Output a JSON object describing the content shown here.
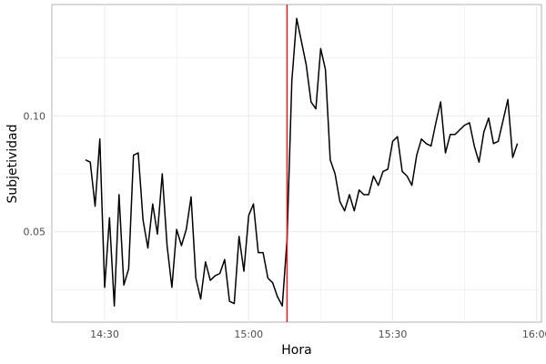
{
  "chart_data": {
    "type": "line",
    "title": "",
    "xlabel": "Hora",
    "ylabel": "Subjetividad",
    "x_ticks": [
      "14:30",
      "15:00",
      "15:30",
      "16:00"
    ],
    "y_ticks": [
      "0.05",
      "0.10"
    ],
    "xlim": [
      "14:19",
      "16:01"
    ],
    "ylim": [
      0.011,
      0.148
    ],
    "grid": true,
    "colors": {
      "line": "#000000",
      "vline": "#e31a1c",
      "grid": "#ebebeb"
    },
    "vline_x": "15:08",
    "series": [
      {
        "x": [
          "14:26",
          "14:27",
          "14:28",
          "14:29",
          "14:30",
          "14:31",
          "14:32",
          "14:33",
          "14:34",
          "14:35",
          "14:36",
          "14:37",
          "14:38",
          "14:39",
          "14:40",
          "14:41",
          "14:42",
          "14:43",
          "14:44",
          "14:45",
          "14:46",
          "14:47",
          "14:48",
          "14:49",
          "14:50",
          "14:51",
          "14:52",
          "14:53",
          "14:54",
          "14:55",
          "14:56",
          "14:57",
          "14:58",
          "14:59",
          "15:00",
          "15:01",
          "15:02",
          "15:03",
          "15:04",
          "15:05",
          "15:06",
          "15:07",
          "15:08",
          "15:09",
          "15:10",
          "15:11",
          "15:12",
          "15:13",
          "15:14",
          "15:15",
          "15:16",
          "15:17",
          "15:18",
          "15:19",
          "15:20",
          "15:21",
          "15:22",
          "15:23",
          "15:24",
          "15:25",
          "15:26",
          "15:27",
          "15:28",
          "15:29",
          "15:30",
          "15:31",
          "15:32",
          "15:33",
          "15:34",
          "15:35",
          "15:36",
          "15:37",
          "15:38",
          "15:39",
          "15:40",
          "15:41",
          "15:42",
          "15:43",
          "15:44",
          "15:45",
          "15:46",
          "15:47",
          "15:48",
          "15:49",
          "15:50",
          "15:51",
          "15:52",
          "15:53",
          "15:54",
          "15:55",
          "15:56"
        ],
        "values": [
          0.081,
          0.08,
          0.061,
          0.09,
          0.026,
          0.056,
          0.018,
          0.066,
          0.027,
          0.034,
          0.083,
          0.084,
          0.055,
          0.043,
          0.062,
          0.049,
          0.075,
          0.044,
          0.026,
          0.051,
          0.044,
          0.051,
          0.065,
          0.03,
          0.021,
          0.037,
          0.029,
          0.031,
          0.032,
          0.038,
          0.02,
          0.019,
          0.048,
          0.033,
          0.057,
          0.062,
          0.041,
          0.041,
          0.03,
          0.028,
          0.022,
          0.018,
          0.047,
          0.115,
          0.142,
          0.132,
          0.122,
          0.106,
          0.103,
          0.129,
          0.12,
          0.081,
          0.075,
          0.063,
          0.059,
          0.066,
          0.059,
          0.068,
          0.066,
          0.066,
          0.074,
          0.07,
          0.076,
          0.077,
          0.089,
          0.091,
          0.076,
          0.074,
          0.07,
          0.083,
          0.09,
          0.088,
          0.087,
          0.097,
          0.106,
          0.084,
          0.092,
          0.092,
          0.094,
          0.096,
          0.097,
          0.087,
          0.08,
          0.093,
          0.099,
          0.088,
          0.089,
          0.098,
          0.107,
          0.082,
          0.088
        ]
      }
    ]
  }
}
